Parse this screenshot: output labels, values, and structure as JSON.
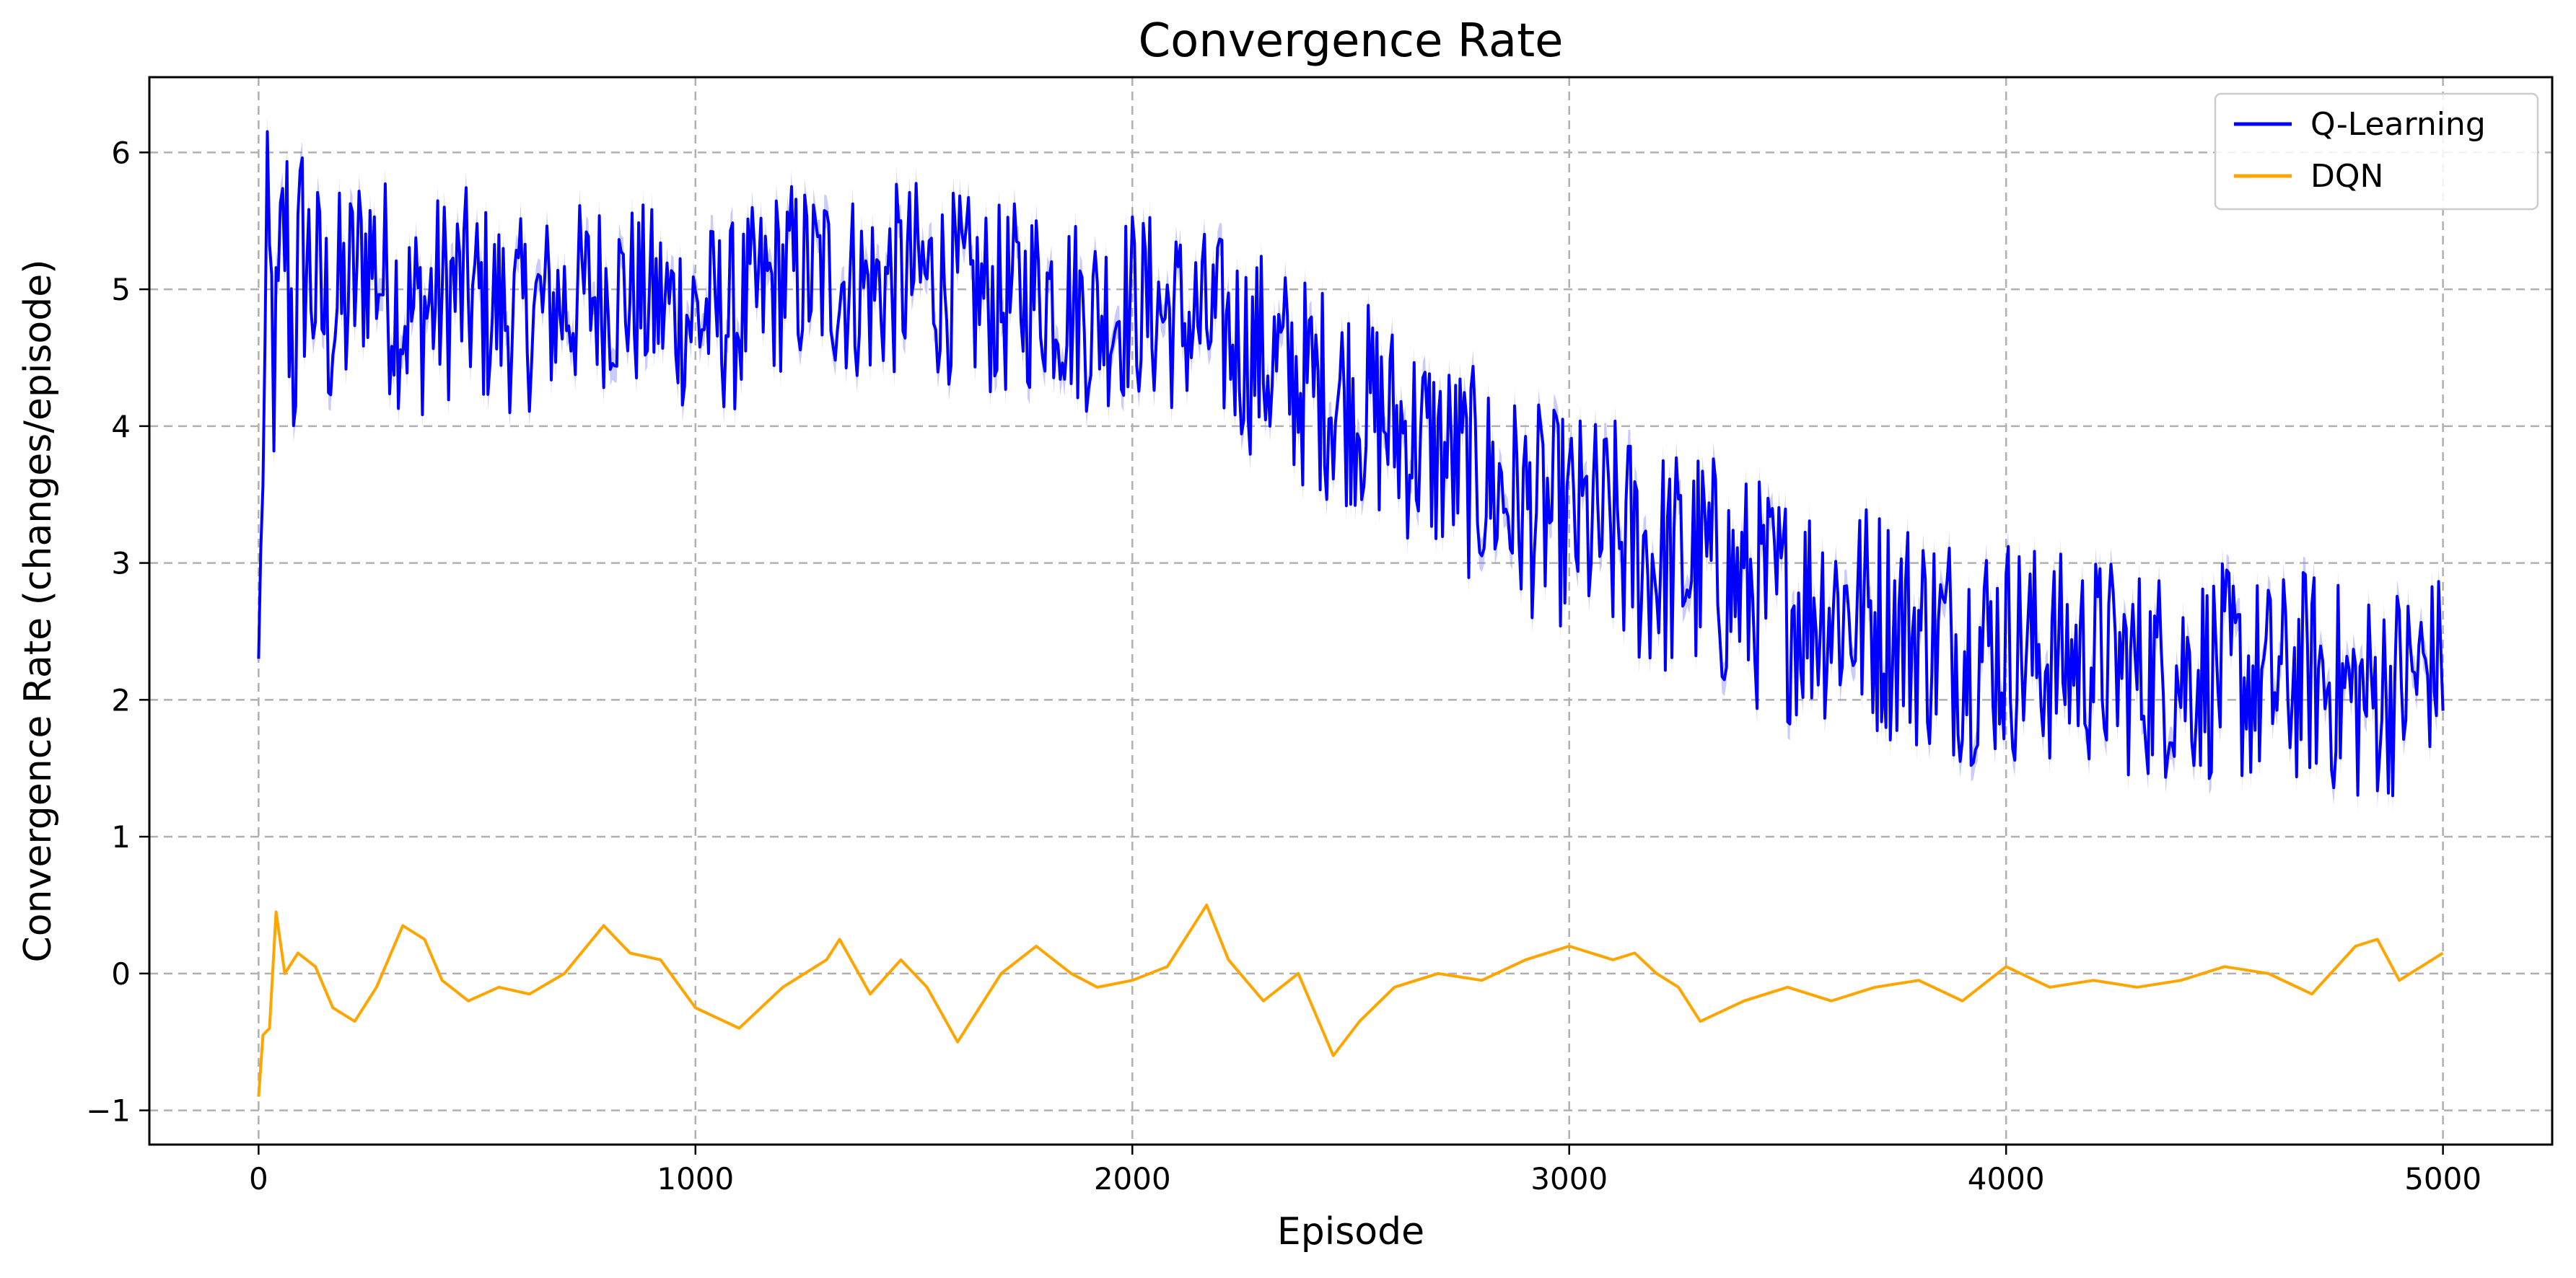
{
  "chart_data": {
    "type": "line",
    "title": "Convergence Rate",
    "xlabel": "Episode",
    "ylabel": "Convergence Rate (changes/episode)",
    "xlim": [
      -250,
      5250
    ],
    "ylim": [
      -1.25,
      6.55
    ],
    "xticks": [
      0,
      1000,
      2000,
      3000,
      4000,
      5000
    ],
    "xtick_labels": [
      "0",
      "1000",
      "2000",
      "3000",
      "4000",
      "5000"
    ],
    "yticks": [
      -1,
      0,
      1,
      2,
      3,
      4,
      5,
      6
    ],
    "ytick_labels": [
      "−1",
      "0",
      "1",
      "2",
      "3",
      "4",
      "5",
      "6"
    ],
    "grid": true,
    "legend_position": "top-right",
    "series": [
      {
        "name": "Q-Learning",
        "color": "#0000ff",
        "band_color": "#8c8cf5",
        "x": [
          0,
          20,
          40,
          60,
          80,
          100,
          150,
          200,
          250,
          300,
          350,
          400,
          450,
          500,
          600,
          700,
          800,
          900,
          1000,
          1100,
          1200,
          1300,
          1400,
          1500,
          1600,
          1700,
          1800,
          1900,
          2000,
          2100,
          2200,
          2300,
          2400,
          2500,
          2600,
          2700,
          2800,
          2900,
          3000,
          3100,
          3200,
          3300,
          3400,
          3500,
          3600,
          3700,
          3800,
          3900,
          4000,
          4100,
          4200,
          4300,
          4400,
          4500,
          4600,
          4700,
          4800,
          4900,
          5000
        ],
        "y": [
          2.3,
          5.2,
          4.3,
          5.5,
          4.6,
          5.3,
          4.8,
          4.9,
          5.3,
          5.0,
          4.8,
          4.9,
          5.0,
          4.9,
          4.8,
          4.9,
          5.0,
          4.9,
          4.8,
          4.8,
          5.1,
          5.1,
          5.0,
          5.1,
          5.0,
          4.9,
          5.0,
          4.8,
          4.9,
          4.8,
          4.7,
          4.5,
          4.3,
          4.2,
          4.0,
          3.8,
          3.6,
          3.4,
          3.3,
          3.2,
          3.0,
          3.0,
          2.8,
          2.7,
          2.7,
          2.6,
          2.5,
          2.4,
          2.4,
          2.3,
          2.3,
          2.2,
          2.2,
          2.2,
          2.1,
          2.2,
          2.0,
          2.1,
          2.3
        ],
        "noise": [
          0,
          0.6,
          0.7,
          0.7,
          0.7,
          0.6,
          0.55,
          0.55,
          0.5,
          0.5,
          0.5,
          0.5,
          0.5,
          0.5,
          0.45,
          0.45,
          0.45,
          0.45,
          0.45,
          0.45,
          0.45,
          0.45,
          0.45,
          0.45,
          0.45,
          0.45,
          0.45,
          0.45,
          0.45,
          0.45,
          0.45,
          0.5,
          0.5,
          0.5,
          0.5,
          0.5,
          0.5,
          0.5,
          0.5,
          0.55,
          0.55,
          0.55,
          0.55,
          0.55,
          0.55,
          0.55,
          0.55,
          0.55,
          0.55,
          0.5,
          0.5,
          0.5,
          0.5,
          0.5,
          0.5,
          0.5,
          0.5,
          0.5,
          0.4
        ]
      },
      {
        "name": "DQN",
        "color": "#ffa500",
        "x": [
          0,
          10,
          25,
          40,
          60,
          90,
          130,
          170,
          220,
          270,
          330,
          380,
          420,
          480,
          550,
          620,
          700,
          790,
          850,
          920,
          1000,
          1100,
          1200,
          1300,
          1330,
          1400,
          1470,
          1530,
          1600,
          1700,
          1780,
          1860,
          1920,
          2000,
          2080,
          2130,
          2170,
          2220,
          2300,
          2380,
          2460,
          2520,
          2600,
          2700,
          2800,
          2900,
          3000,
          3100,
          3150,
          3200,
          3250,
          3300,
          3400,
          3500,
          3600,
          3700,
          3800,
          3900,
          4000,
          4100,
          4200,
          4300,
          4400,
          4500,
          4600,
          4700,
          4800,
          4850,
          4900,
          5000
        ],
        "y": [
          -0.9,
          -0.45,
          -0.4,
          0.45,
          0.0,
          0.15,
          0.05,
          -0.25,
          -0.35,
          -0.1,
          0.35,
          0.25,
          -0.05,
          -0.2,
          -0.1,
          -0.15,
          0.0,
          0.35,
          0.15,
          0.1,
          -0.25,
          -0.4,
          -0.1,
          0.1,
          0.25,
          -0.15,
          0.1,
          -0.1,
          -0.5,
          0.0,
          0.2,
          0.0,
          -0.1,
          -0.05,
          0.05,
          0.3,
          0.5,
          0.1,
          -0.2,
          0.0,
          -0.6,
          -0.35,
          -0.1,
          0.0,
          -0.05,
          0.1,
          0.2,
          0.1,
          0.15,
          0.0,
          -0.1,
          -0.35,
          -0.2,
          -0.1,
          -0.2,
          -0.1,
          -0.05,
          -0.2,
          0.05,
          -0.1,
          -0.05,
          -0.1,
          -0.05,
          0.05,
          0.0,
          -0.15,
          0.2,
          0.25,
          -0.05,
          0.15
        ]
      }
    ]
  }
}
